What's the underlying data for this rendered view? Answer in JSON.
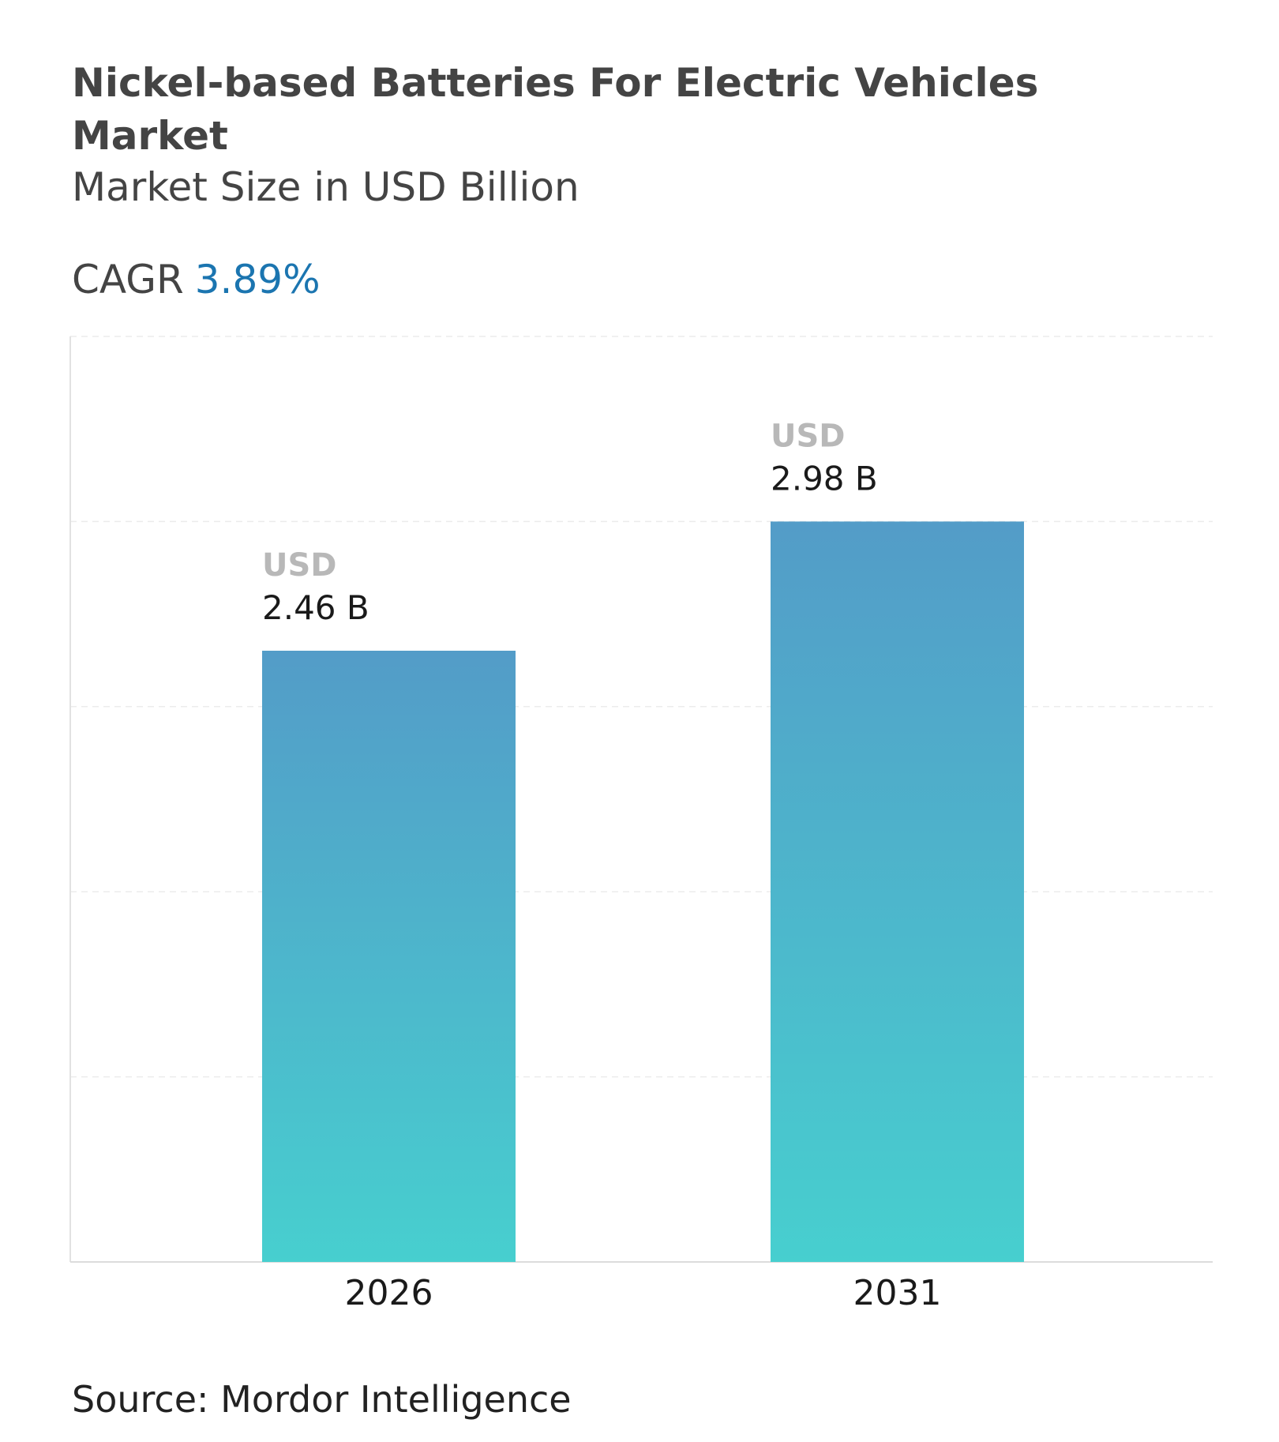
{
  "header": {
    "title": "Nickel-based Batteries For Electric Vehicles Market",
    "subtitle": "Market Size in USD Billion",
    "cagr_label": "CAGR",
    "cagr_value": "3.89%"
  },
  "colors": {
    "bar_top": "#539cc8",
    "bar_bottom": "#47cfcf",
    "cagr": "#1b75b0"
  },
  "chart_data": {
    "type": "bar",
    "categories": [
      "2026",
      "2031"
    ],
    "values": [
      2.46,
      2.98
    ],
    "data_labels": [
      {
        "prefix": "USD",
        "value": "2.46 B"
      },
      {
        "prefix": "USD",
        "value": "2.98 B"
      }
    ],
    "xlabel": "",
    "ylabel": "",
    "grid": true
  },
  "footer": {
    "source": "Source: Mordor Intelligence"
  }
}
